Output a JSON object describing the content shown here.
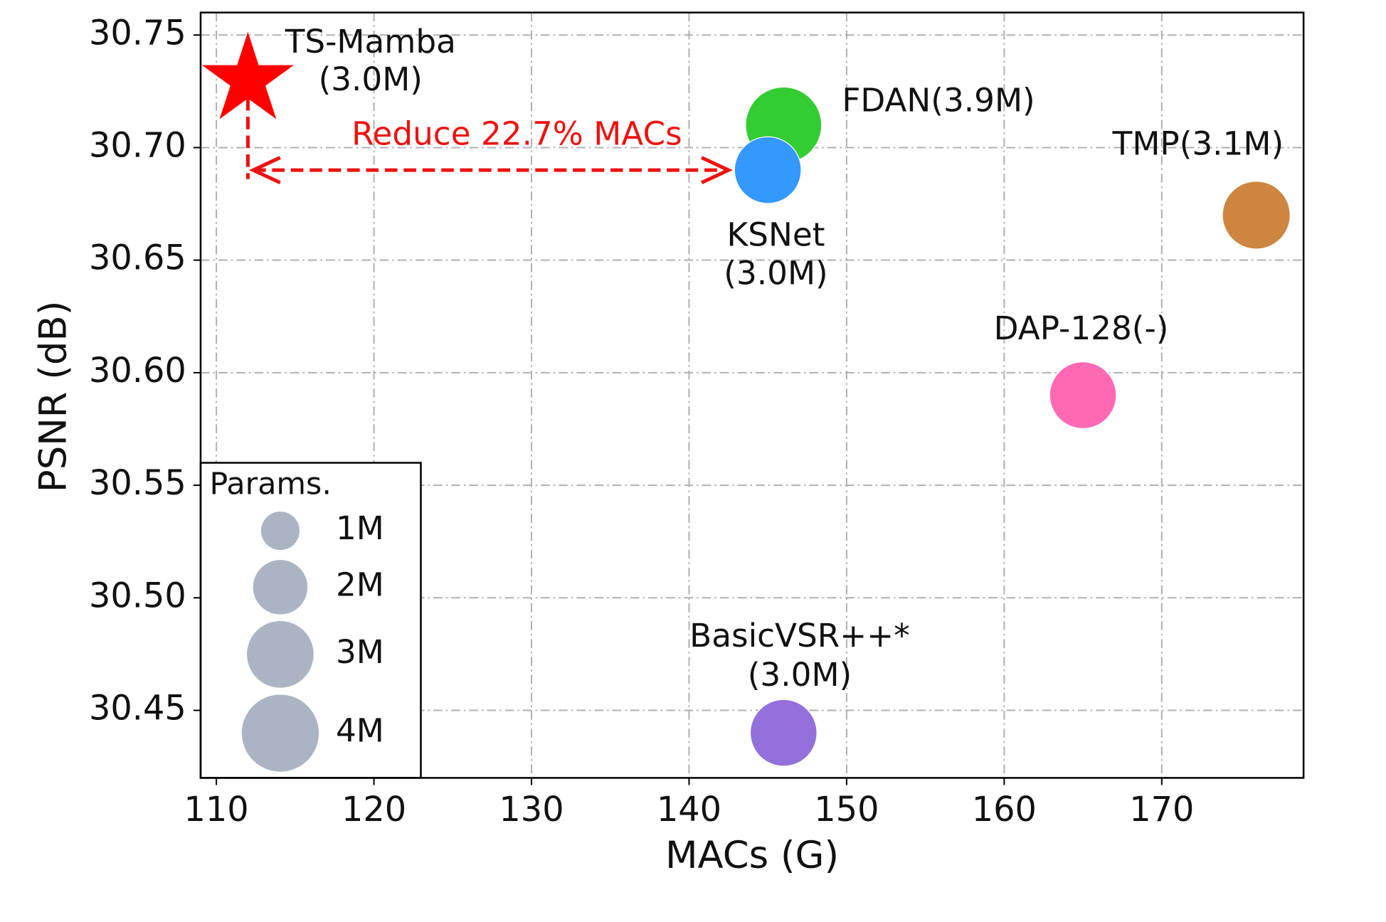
{
  "chart_data": {
    "type": "scatter",
    "xlabel": "MACs (G)",
    "ylabel": "PSNR (dB)",
    "xlim": [
      109,
      179
    ],
    "ylim": [
      30.42,
      30.76
    ],
    "xticks": [
      110,
      120,
      130,
      140,
      150,
      160,
      170
    ],
    "yticks": [
      30.45,
      {
        "value": 30.5,
        "label": "30.50"
      },
      30.55,
      {
        "value": 30.6,
        "label": "30.60"
      },
      30.65,
      {
        "value": 30.7,
        "label": "30.70"
      },
      30.75
    ],
    "grid": true,
    "x": [
      112,
      146,
      145,
      176,
      165,
      146
    ],
    "values": [
      30.73,
      30.71,
      30.69,
      30.67,
      30.59,
      30.44
    ],
    "sizes": [
      3.0,
      3.9,
      3.0,
      3.1,
      3.0,
      3.0
    ],
    "colors": [
      "#ff0000",
      "#33cc33",
      "#3399ff",
      "#cd853f",
      "#ff69b4",
      "#9370db"
    ],
    "markers": [
      "star",
      "circle",
      "circle",
      "circle",
      "circle",
      "circle"
    ],
    "point_labels": [
      [
        "TS-Mamba",
        "(3.0M)"
      ],
      [
        "FDAN(3.9M)"
      ],
      [
        "KSNet",
        "(3.0M)"
      ],
      [
        "TMP(3.1M)"
      ],
      [
        "DAP-128(-)"
      ],
      [
        "BasicVSR++*",
        "(3.0M)"
      ]
    ],
    "annotation": {
      "text": "Reduce 22.7% MACs",
      "color": "#ee1111"
    },
    "legend": {
      "title": "Params.",
      "corner": "lower left",
      "color": "#aab4c3",
      "sizes": [
        {
          "value": 1,
          "label": "1M"
        },
        {
          "value": 2,
          "label": "2M"
        },
        {
          "value": 3,
          "label": "3M"
        },
        {
          "value": 4,
          "label": "4M"
        }
      ]
    }
  }
}
